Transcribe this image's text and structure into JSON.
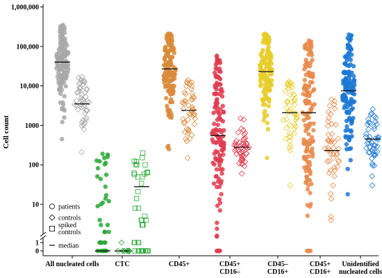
{
  "chart_data": {
    "type": "scatter",
    "title": "",
    "xlabel": "",
    "ylabel": "Cell count",
    "yscale": "log (broken axis; 0 and 1 plotted below the break)",
    "ylim": [
      0,
      1000000
    ],
    "yticks": [
      {
        "value": 0,
        "label": "0"
      },
      {
        "value": 1,
        "label": "1"
      },
      {
        "value": 10,
        "label": "10"
      },
      {
        "value": 100,
        "label": "100"
      },
      {
        "value": 1000,
        "label": "1000"
      },
      {
        "value": 10000,
        "label": "10,000"
      },
      {
        "value": 100000,
        "label": "100,000"
      },
      {
        "value": 1000000,
        "label": "1,000,000"
      }
    ],
    "categories": [
      {
        "label": "All nucleated cells",
        "lines": [
          "All nucleated cells"
        ]
      },
      {
        "label": "CTC",
        "lines": [
          "CTC"
        ]
      },
      {
        "label": "CD45+",
        "lines": [
          "CD45+"
        ]
      },
      {
        "label": "CD45+ CD16–",
        "lines": [
          "CD45+",
          "CD16–"
        ]
      },
      {
        "label": "CD45– CD16+",
        "lines": [
          "CD45–",
          "CD16+"
        ]
      },
      {
        "label": "CD45+ CD16+",
        "lines": [
          "CD45+",
          "CD16+"
        ]
      },
      {
        "label": "Unidentified nucleated cells",
        "lines": [
          "Unidentified",
          "nucleated cells"
        ]
      }
    ],
    "series": [
      {
        "category": "All nucleated cells",
        "group": "patients",
        "color": "#a8a8a8",
        "median": 40000,
        "min": 450,
        "max": 350000
      },
      {
        "category": "All nucleated cells",
        "group": "controls",
        "color": "#a8a8a8",
        "median": 3500,
        "min": 210,
        "max": 17000
      },
      {
        "category": "CTC",
        "group": "patients",
        "color": "#2aa836",
        "median": 0,
        "min": 0,
        "max": 190
      },
      {
        "category": "CTC",
        "group": "controls",
        "color": "#2aa836",
        "median": 0,
        "min": 0,
        "max": 1
      },
      {
        "category": "CTC",
        "group": "spiked controls",
        "color": "#2aa836",
        "median": 28,
        "min": 0,
        "max": 200
      },
      {
        "category": "CD45+",
        "group": "patients",
        "color": "#d9893a",
        "median": 27000,
        "min": 250,
        "max": 210000
      },
      {
        "category": "CD45+",
        "group": "controls",
        "color": "#d9893a",
        "median": 2400,
        "min": 150,
        "max": 14000
      },
      {
        "category": "CD45+ CD16–",
        "group": "patients",
        "color": "#e03c50",
        "median": 550,
        "min": 0,
        "max": 58000
      },
      {
        "category": "CD45+ CD16–",
        "group": "controls",
        "color": "#e03c50",
        "median": 280,
        "min": 60,
        "max": 1500
      },
      {
        "category": "CD45– CD16+",
        "group": "patients",
        "color": "#e8cc2a",
        "median": 23000,
        "min": 150,
        "max": 210000
      },
      {
        "category": "CD45– CD16+",
        "group": "controls",
        "color": "#e8cc2a",
        "median": 2100,
        "min": 30,
        "max": 13000
      },
      {
        "category": "CD45+ CD16+",
        "group": "patients",
        "color": "#e8894a",
        "median": 2100,
        "min": 0,
        "max": 140000
      },
      {
        "category": "CD45+ CD16+",
        "group": "controls",
        "color": "#e8894a",
        "median": 230,
        "min": 4,
        "max": 4500
      },
      {
        "category": "Unidentified nucleated cells",
        "group": "patients",
        "color": "#1c78d4",
        "median": 7500,
        "min": 18,
        "max": 200000
      },
      {
        "category": "Unidentified nucleated cells",
        "group": "controls",
        "color": "#1c78d4",
        "median": 450,
        "min": 30,
        "max": 2600
      }
    ],
    "legend": {
      "placement": "bottom-left",
      "items": [
        {
          "label": "patients",
          "marker": "circle"
        },
        {
          "label": "controls",
          "marker": "diamond"
        },
        {
          "label_lines": [
            "spiked",
            "controls"
          ],
          "marker": "square"
        },
        {
          "label": "median",
          "marker": "line"
        }
      ]
    }
  }
}
